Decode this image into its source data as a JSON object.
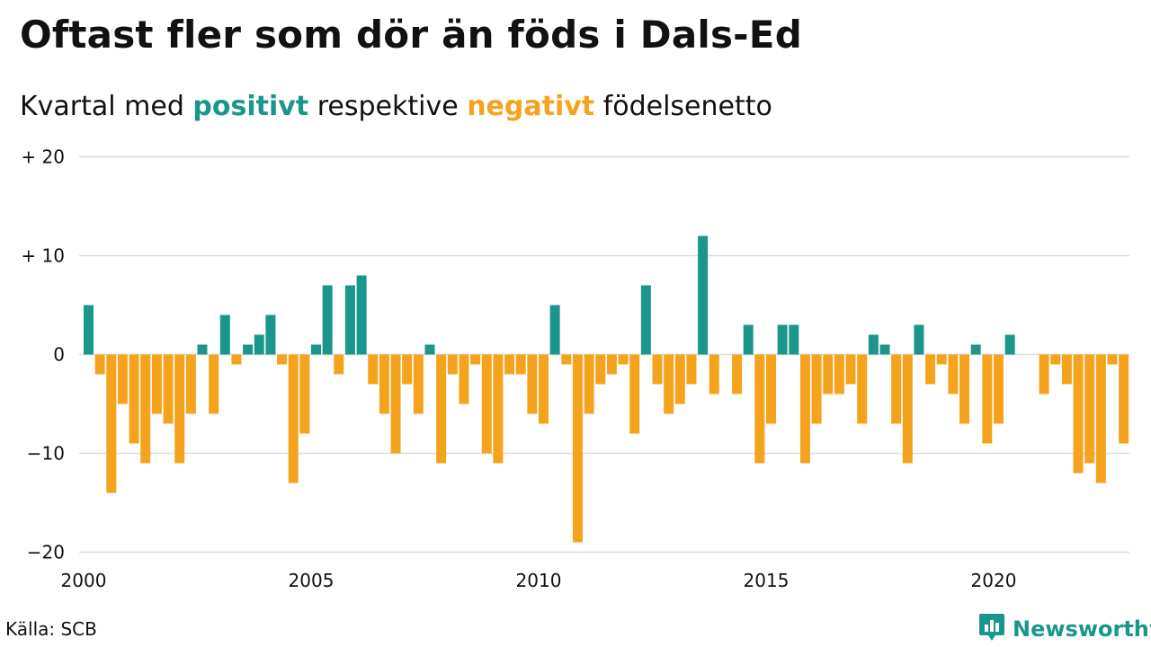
{
  "title": "Oftast fler som dör än föds i Dals-Ed",
  "subtitle": {
    "prefix": "Kvartal med ",
    "positive_word": "positivt",
    "middle": " respektive ",
    "negative_word": "negativt",
    "suffix": " födelsenetto"
  },
  "source": "Källa: SCB",
  "brand": {
    "name": "Newsworthy",
    "icon": "newsworthy-logo-icon"
  },
  "colors": {
    "positive": "#1b968a",
    "negative": "#f5a31d",
    "grid": "#dddddd",
    "text": "#111111"
  },
  "chart_data": {
    "type": "bar",
    "title": "Oftast fler som dör än föds i Dals-Ed",
    "subtitle": "Kvartal med positivt respektive negativt födelsenetto",
    "xlabel": "",
    "ylabel": "",
    "ylim": [
      -20,
      20
    ],
    "y_ticks": [
      {
        "value": 20,
        "label": "+ 20"
      },
      {
        "value": 10,
        "label": "+ 10"
      },
      {
        "value": 0,
        "label": "0"
      },
      {
        "value": -10,
        "label": "−10"
      },
      {
        "value": -20,
        "label": "−20"
      }
    ],
    "x_ticks": [
      "2000",
      "2005",
      "2010",
      "2015",
      "2020"
    ],
    "x_start_year": 2000,
    "quarters_per_year": 4,
    "grid": true,
    "values": [
      5,
      -2,
      -14,
      -5,
      -9,
      -11,
      -6,
      -7,
      -11,
      -6,
      1,
      -6,
      4,
      -1,
      1,
      2,
      4,
      -1,
      -13,
      -8,
      1,
      7,
      -2,
      7,
      8,
      -3,
      -6,
      -10,
      -3,
      -6,
      1,
      -11,
      -2,
      -5,
      -1,
      -10,
      -11,
      -2,
      -2,
      -6,
      -7,
      5,
      -1,
      -19,
      -6,
      -3,
      -2,
      -1,
      -8,
      7,
      -3,
      -6,
      -5,
      -3,
      12,
      -4,
      0,
      -4,
      3,
      -11,
      -7,
      3,
      3,
      -11,
      -7,
      -4,
      -4,
      -3,
      -7,
      2,
      1,
      -7,
      -11,
      3,
      -3,
      -1,
      -4,
      -7,
      1,
      -9,
      -7,
      2,
      0,
      0,
      -4,
      -1,
      -3,
      -12,
      -11,
      -13,
      -1,
      -9
    ]
  }
}
